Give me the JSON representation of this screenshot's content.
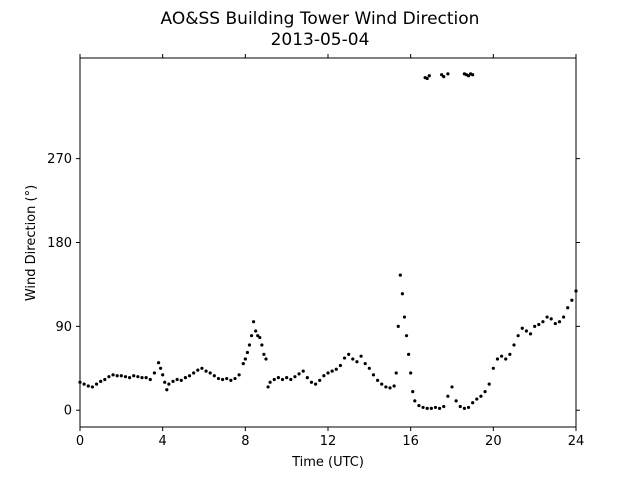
{
  "chart_data": {
    "type": "scatter",
    "title": "AO&SS Building Tower Wind Direction",
    "subtitle": "2013-05-04",
    "xlabel": "Time (UTC)",
    "ylabel": "Wind Direction (°)",
    "xlim": [
      0,
      24
    ],
    "ylim": [
      -18,
      378
    ],
    "xticks": [
      0,
      4,
      8,
      12,
      16,
      20,
      24
    ],
    "yticks": [
      0,
      90,
      180,
      270
    ],
    "grid": false,
    "marker_color": "#000000",
    "series": [
      {
        "points": [
          [
            0.0,
            30
          ],
          [
            0.2,
            28
          ],
          [
            0.4,
            26
          ],
          [
            0.6,
            25
          ],
          [
            0.8,
            28
          ],
          [
            1.0,
            31
          ],
          [
            1.2,
            33
          ],
          [
            1.4,
            36
          ],
          [
            1.6,
            38
          ],
          [
            1.8,
            37
          ],
          [
            2.0,
            37
          ],
          [
            2.2,
            36
          ],
          [
            2.4,
            35
          ],
          [
            2.6,
            37
          ],
          [
            2.8,
            36
          ],
          [
            3.0,
            35
          ],
          [
            3.2,
            35
          ],
          [
            3.4,
            33
          ],
          [
            3.6,
            40
          ],
          [
            3.8,
            51
          ],
          [
            3.9,
            45
          ],
          [
            4.0,
            38
          ],
          [
            4.1,
            30
          ],
          [
            4.2,
            22
          ],
          [
            4.3,
            28
          ],
          [
            4.5,
            31
          ],
          [
            4.7,
            33
          ],
          [
            4.9,
            32
          ],
          [
            5.1,
            35
          ],
          [
            5.3,
            37
          ],
          [
            5.5,
            40
          ],
          [
            5.7,
            43
          ],
          [
            5.9,
            45
          ],
          [
            6.1,
            42
          ],
          [
            6.3,
            40
          ],
          [
            6.5,
            37
          ],
          [
            6.7,
            34
          ],
          [
            6.9,
            33
          ],
          [
            7.1,
            34
          ],
          [
            7.3,
            32
          ],
          [
            7.5,
            34
          ],
          [
            7.7,
            38
          ],
          [
            7.9,
            50
          ],
          [
            8.0,
            55
          ],
          [
            8.1,
            62
          ],
          [
            8.2,
            70
          ],
          [
            8.3,
            80
          ],
          [
            8.4,
            95
          ],
          [
            8.5,
            85
          ],
          [
            8.6,
            80
          ],
          [
            8.7,
            78
          ],
          [
            8.8,
            70
          ],
          [
            8.9,
            60
          ],
          [
            9.0,
            55
          ],
          [
            9.1,
            25
          ],
          [
            9.2,
            30
          ],
          [
            9.4,
            33
          ],
          [
            9.6,
            35
          ],
          [
            9.8,
            33
          ],
          [
            10.0,
            35
          ],
          [
            10.2,
            33
          ],
          [
            10.4,
            36
          ],
          [
            10.6,
            39
          ],
          [
            10.8,
            42
          ],
          [
            11.0,
            35
          ],
          [
            11.2,
            30
          ],
          [
            11.4,
            28
          ],
          [
            11.6,
            32
          ],
          [
            11.8,
            37
          ],
          [
            12.0,
            40
          ],
          [
            12.2,
            42
          ],
          [
            12.4,
            44
          ],
          [
            12.6,
            48
          ],
          [
            12.8,
            56
          ],
          [
            13.0,
            60
          ],
          [
            13.2,
            55
          ],
          [
            13.4,
            52
          ],
          [
            13.6,
            58
          ],
          [
            13.8,
            50
          ],
          [
            14.0,
            45
          ],
          [
            14.2,
            38
          ],
          [
            14.4,
            32
          ],
          [
            14.6,
            28
          ],
          [
            14.8,
            25
          ],
          [
            15.0,
            24
          ],
          [
            15.2,
            26
          ],
          [
            15.3,
            40
          ],
          [
            15.4,
            90
          ],
          [
            15.5,
            145
          ],
          [
            15.6,
            125
          ],
          [
            15.7,
            100
          ],
          [
            15.8,
            80
          ],
          [
            15.9,
            60
          ],
          [
            16.0,
            40
          ],
          [
            16.1,
            20
          ],
          [
            16.2,
            10
          ],
          [
            16.4,
            5
          ],
          [
            16.6,
            3
          ],
          [
            16.8,
            2
          ],
          [
            17.0,
            2
          ],
          [
            17.2,
            3
          ],
          [
            17.4,
            2
          ],
          [
            17.6,
            4
          ],
          [
            17.8,
            15
          ],
          [
            18.0,
            25
          ],
          [
            18.2,
            10
          ],
          [
            18.4,
            4
          ],
          [
            18.6,
            2
          ],
          [
            18.8,
            3
          ],
          [
            19.0,
            8
          ],
          [
            19.2,
            12
          ],
          [
            19.4,
            15
          ],
          [
            19.6,
            20
          ],
          [
            19.8,
            28
          ],
          [
            20.0,
            45
          ],
          [
            20.2,
            55
          ],
          [
            20.4,
            58
          ],
          [
            20.6,
            55
          ],
          [
            20.8,
            60
          ],
          [
            21.0,
            70
          ],
          [
            21.2,
            80
          ],
          [
            21.4,
            88
          ],
          [
            21.6,
            85
          ],
          [
            21.8,
            82
          ],
          [
            22.0,
            90
          ],
          [
            22.2,
            92
          ],
          [
            22.4,
            95
          ],
          [
            22.6,
            100
          ],
          [
            22.8,
            98
          ],
          [
            23.0,
            93
          ],
          [
            23.2,
            95
          ],
          [
            23.4,
            100
          ],
          [
            23.6,
            110
          ],
          [
            23.8,
            118
          ],
          [
            24.0,
            128
          ],
          [
            16.7,
            357
          ],
          [
            16.8,
            356
          ],
          [
            16.9,
            359
          ],
          [
            17.5,
            360
          ],
          [
            17.6,
            358
          ],
          [
            17.8,
            361
          ],
          [
            18.6,
            361
          ],
          [
            18.7,
            360
          ],
          [
            18.8,
            359
          ],
          [
            18.9,
            361
          ],
          [
            19.0,
            360
          ]
        ]
      }
    ]
  }
}
